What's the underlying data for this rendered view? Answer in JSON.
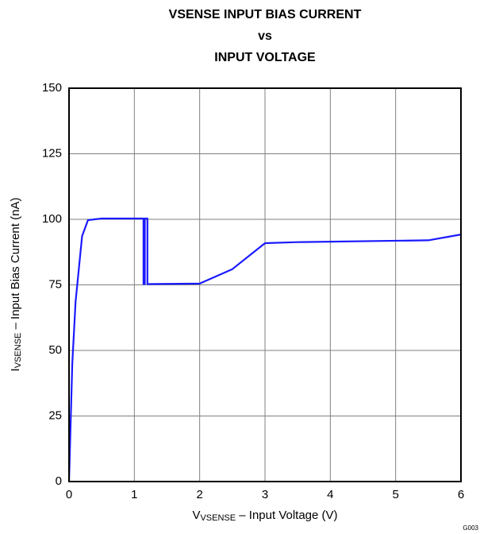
{
  "chart_data": {
    "type": "line",
    "title": [
      "VSENSE INPUT BIAS CURRENT",
      "vs",
      "INPUT VOLTAGE"
    ],
    "xlabel": {
      "main": "V",
      "sub": "VSENSE",
      "rest": " – Input Voltage (V)"
    },
    "ylabel": {
      "main": "I",
      "sub": "VSENSE",
      "rest": " – Input Bias Current (nA)"
    },
    "code": "G003",
    "x": [
      0,
      0.05,
      0.1,
      0.2,
      0.29,
      0.5,
      1.14,
      1.14,
      1.16,
      1.16,
      1.2,
      1.2,
      2.0,
      2.5,
      3.0,
      3.5,
      5.5,
      6.0
    ],
    "series": [
      {
        "color": "#1a1aff",
        "values": [
          0,
          45,
          68.5,
          93.6,
          99.7,
          100.3,
          100.3,
          75.3,
          75.3,
          100.3,
          100.3,
          75.3,
          75.5,
          81,
          90.9,
          91.3,
          92,
          94.2
        ]
      }
    ],
    "xlim": [
      0,
      6
    ],
    "xticks": [
      0,
      1,
      2,
      3,
      4,
      5,
      6
    ],
    "ylim": [
      0,
      150
    ],
    "yticks": [
      0,
      25,
      50,
      75,
      100,
      125,
      150
    ],
    "grid": true
  }
}
